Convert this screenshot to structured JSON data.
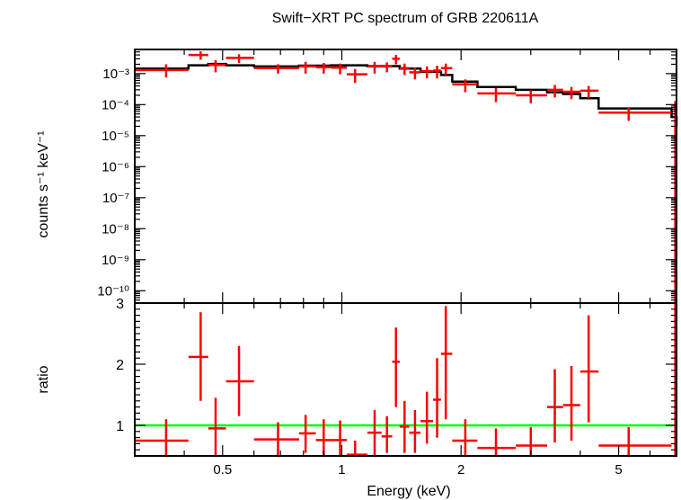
{
  "chart_data": [
    {
      "type": "scatter",
      "title": "Swift−XRT PC spectrum of GRB 220611A",
      "ylabel": "counts s⁻¹ keV⁻¹",
      "xscale": "log",
      "yscale": "log",
      "xlim": [
        0.3,
        7.0
      ],
      "ylim": [
        4e-11,
        0.006
      ],
      "yticks": [
        {
          "value": 0.001,
          "label": "10⁻³"
        },
        {
          "value": 0.0001,
          "label": "10⁻⁴"
        },
        {
          "value": 1e-05,
          "label": "10⁻⁵"
        },
        {
          "value": 1e-06,
          "label": "10⁻⁶"
        },
        {
          "value": 1e-07,
          "label": "10⁻⁷"
        },
        {
          "value": 1e-08,
          "label": "10⁻⁸"
        },
        {
          "value": 1e-09,
          "label": "10⁻⁹"
        },
        {
          "value": 1e-10,
          "label": "10⁻¹⁰"
        }
      ],
      "series": [
        {
          "role": "data",
          "color": "#ff0000",
          "points": [
            {
              "x": 0.36,
              "xlo": 0.3,
              "xhi": 0.41,
              "y": 0.0013,
              "ylo": 0.00075,
              "yhi": 0.002
            },
            {
              "x": 0.44,
              "xlo": 0.41,
              "xhi": 0.46,
              "y": 0.004,
              "ylo": 0.0028,
              "yhi": 0.0052
            },
            {
              "x": 0.48,
              "xlo": 0.46,
              "xhi": 0.51,
              "y": 0.0019,
              "ylo": 0.0011,
              "yhi": 0.0027
            },
            {
              "x": 0.55,
              "xlo": 0.51,
              "xhi": 0.6,
              "y": 0.0032,
              "ylo": 0.0022,
              "yhi": 0.0042
            },
            {
              "x": 0.69,
              "xlo": 0.6,
              "xhi": 0.78,
              "y": 0.0015,
              "ylo": 0.001,
              "yhi": 0.002
            },
            {
              "x": 0.81,
              "xlo": 0.78,
              "xhi": 0.86,
              "y": 0.0017,
              "ylo": 0.001,
              "yhi": 0.0024
            },
            {
              "x": 0.9,
              "xlo": 0.86,
              "xhi": 0.94,
              "y": 0.0016,
              "ylo": 0.001,
              "yhi": 0.0022
            },
            {
              "x": 0.99,
              "xlo": 0.94,
              "xhi": 1.03,
              "y": 0.00155,
              "ylo": 0.00095,
              "yhi": 0.0021
            },
            {
              "x": 1.08,
              "xlo": 1.03,
              "xhi": 1.16,
              "y": 0.00095,
              "ylo": 0.0005,
              "yhi": 0.0014
            },
            {
              "x": 1.21,
              "xlo": 1.16,
              "xhi": 1.26,
              "y": 0.0017,
              "ylo": 0.001,
              "yhi": 0.0024
            },
            {
              "x": 1.3,
              "xlo": 1.26,
              "xhi": 1.34,
              "y": 0.0017,
              "ylo": 0.0011,
              "yhi": 0.0023
            },
            {
              "x": 1.37,
              "xlo": 1.34,
              "xhi": 1.4,
              "y": 0.003,
              "ylo": 0.002,
              "yhi": 0.004
            },
            {
              "x": 1.44,
              "xlo": 1.4,
              "xhi": 1.48,
              "y": 0.0015,
              "ylo": 0.0009,
              "yhi": 0.0021
            },
            {
              "x": 1.53,
              "xlo": 1.48,
              "xhi": 1.58,
              "y": 0.0011,
              "ylo": 0.00065,
              "yhi": 0.0016
            },
            {
              "x": 1.64,
              "xlo": 1.58,
              "xhi": 1.7,
              "y": 0.0012,
              "ylo": 0.0007,
              "yhi": 0.0017
            },
            {
              "x": 1.74,
              "xlo": 1.7,
              "xhi": 1.78,
              "y": 0.00125,
              "ylo": 0.0007,
              "yhi": 0.0018
            },
            {
              "x": 1.83,
              "xlo": 1.78,
              "xhi": 1.9,
              "y": 0.0015,
              "ylo": 0.0009,
              "yhi": 0.0021
            },
            {
              "x": 2.05,
              "xlo": 1.9,
              "xhi": 2.2,
              "y": 0.00045,
              "ylo": 0.00025,
              "yhi": 0.00065
            },
            {
              "x": 2.45,
              "xlo": 2.2,
              "xhi": 2.75,
              "y": 0.00023,
              "ylo": 0.00012,
              "yhi": 0.00034
            },
            {
              "x": 3.0,
              "xlo": 2.75,
              "xhi": 3.3,
              "y": 0.0002,
              "ylo": 0.00011,
              "yhi": 0.00029
            },
            {
              "x": 3.45,
              "xlo": 3.3,
              "xhi": 3.62,
              "y": 0.0003,
              "ylo": 0.00017,
              "yhi": 0.00043
            },
            {
              "x": 3.8,
              "xlo": 3.62,
              "xhi": 4.0,
              "y": 0.00026,
              "ylo": 0.00015,
              "yhi": 0.00037
            },
            {
              "x": 4.2,
              "xlo": 4.0,
              "xhi": 4.45,
              "y": 0.00028,
              "ylo": 0.00016,
              "yhi": 0.0004
            },
            {
              "x": 5.3,
              "xlo": 4.45,
              "xhi": 6.8,
              "y": 5.5e-05,
              "ylo": 3e-05,
              "yhi": 8e-05
            },
            {
              "x": 6.95,
              "xlo": 6.9,
              "xhi": 7.0,
              "y": 8e-05,
              "ylo": 4e-11,
              "yhi": 0.00013
            }
          ]
        },
        {
          "role": "model",
          "color": "#000000",
          "steps": [
            {
              "x0": 0.3,
              "x1": 0.41,
              "y": 0.00145
            },
            {
              "x0": 0.41,
              "x1": 0.46,
              "y": 0.00185
            },
            {
              "x0": 0.46,
              "x1": 0.51,
              "y": 0.00205
            },
            {
              "x0": 0.51,
              "x1": 0.6,
              "y": 0.00185
            },
            {
              "x0": 0.6,
              "x1": 0.78,
              "y": 0.0017
            },
            {
              "x0": 0.78,
              "x1": 0.94,
              "y": 0.0018
            },
            {
              "x0": 0.94,
              "x1": 1.16,
              "y": 0.00185
            },
            {
              "x0": 1.16,
              "x1": 1.4,
              "y": 0.00175
            },
            {
              "x0": 1.4,
              "x1": 1.58,
              "y": 0.00145
            },
            {
              "x0": 1.58,
              "x1": 1.78,
              "y": 0.00115
            },
            {
              "x0": 1.78,
              "x1": 1.9,
              "y": 0.0009
            },
            {
              "x0": 1.9,
              "x1": 2.2,
              "y": 0.00055
            },
            {
              "x0": 2.2,
              "x1": 2.75,
              "y": 0.00037
            },
            {
              "x0": 2.75,
              "x1": 3.3,
              "y": 0.0003
            },
            {
              "x0": 3.3,
              "x1": 3.62,
              "y": 0.00025
            },
            {
              "x0": 3.62,
              "x1": 4.0,
              "y": 0.00022
            },
            {
              "x0": 4.0,
              "x1": 4.45,
              "y": 0.00016
            },
            {
              "x0": 4.45,
              "x1": 6.8,
              "y": 7.5e-05
            },
            {
              "x0": 6.8,
              "x1": 7.0,
              "y": 4e-05
            }
          ]
        }
      ]
    },
    {
      "type": "scatter",
      "xlabel": "Energy (keV)",
      "ylabel": "ratio",
      "xscale": "log",
      "xlim": [
        0.3,
        7.0
      ],
      "ylim": [
        0.5,
        3.0
      ],
      "xticks": [
        {
          "value": 0.5,
          "label": "0.5"
        },
        {
          "value": 1,
          "label": "1"
        },
        {
          "value": 2,
          "label": "2"
        },
        {
          "value": 5,
          "label": "5"
        }
      ],
      "yticks": [
        {
          "value": 1,
          "label": "1"
        },
        {
          "value": 2,
          "label": "2"
        },
        {
          "value": 3,
          "label": "3"
        }
      ],
      "reference_line": {
        "y": 1,
        "color": "#00ff00"
      },
      "series": [
        {
          "role": "ratio",
          "color": "#ff0000",
          "points": [
            {
              "x": 0.36,
              "xlo": 0.3,
              "xhi": 0.41,
              "y": 0.75,
              "ylo": 0.5,
              "yhi": 1.1
            },
            {
              "x": 0.44,
              "xlo": 0.41,
              "xhi": 0.46,
              "y": 2.12,
              "ylo": 1.4,
              "yhi": 2.85
            },
            {
              "x": 0.48,
              "xlo": 0.46,
              "xhi": 0.51,
              "y": 0.95,
              "ylo": 0.5,
              "yhi": 1.45
            },
            {
              "x": 0.55,
              "xlo": 0.51,
              "xhi": 0.6,
              "y": 1.72,
              "ylo": 1.15,
              "yhi": 2.3
            },
            {
              "x": 0.69,
              "xlo": 0.6,
              "xhi": 0.78,
              "y": 0.77,
              "ylo": 0.5,
              "yhi": 1.05
            },
            {
              "x": 0.81,
              "xlo": 0.78,
              "xhi": 0.86,
              "y": 0.87,
              "ylo": 0.55,
              "yhi": 1.17
            },
            {
              "x": 0.9,
              "xlo": 0.86,
              "xhi": 0.94,
              "y": 0.76,
              "ylo": 0.5,
              "yhi": 1.1
            },
            {
              "x": 0.99,
              "xlo": 0.94,
              "xhi": 1.03,
              "y": 0.76,
              "ylo": 0.5,
              "yhi": 1.08
            },
            {
              "x": 1.08,
              "xlo": 1.03,
              "xhi": 1.16,
              "y": 0.52,
              "ylo": 0.5,
              "yhi": 0.75
            },
            {
              "x": 1.21,
              "xlo": 1.16,
              "xhi": 1.26,
              "y": 0.88,
              "ylo": 0.5,
              "yhi": 1.25
            },
            {
              "x": 1.3,
              "xlo": 1.26,
              "xhi": 1.34,
              "y": 0.82,
              "ylo": 0.55,
              "yhi": 1.15
            },
            {
              "x": 1.37,
              "xlo": 1.34,
              "xhi": 1.4,
              "y": 2.04,
              "ylo": 1.3,
              "yhi": 2.6
            },
            {
              "x": 1.44,
              "xlo": 1.4,
              "xhi": 1.48,
              "y": 0.98,
              "ylo": 0.55,
              "yhi": 1.4
            },
            {
              "x": 1.53,
              "xlo": 1.48,
              "xhi": 1.58,
              "y": 0.88,
              "ylo": 0.55,
              "yhi": 1.25
            },
            {
              "x": 1.64,
              "xlo": 1.58,
              "xhi": 1.7,
              "y": 1.07,
              "ylo": 0.7,
              "yhi": 1.55
            },
            {
              "x": 1.74,
              "xlo": 1.7,
              "xhi": 1.78,
              "y": 1.42,
              "ylo": 0.8,
              "yhi": 2.1
            },
            {
              "x": 1.83,
              "xlo": 1.78,
              "xhi": 1.9,
              "y": 2.17,
              "ylo": 1.1,
              "yhi": 2.95
            },
            {
              "x": 2.05,
              "xlo": 1.9,
              "xhi": 2.2,
              "y": 0.75,
              "ylo": 0.5,
              "yhi": 1.1
            },
            {
              "x": 2.45,
              "xlo": 2.2,
              "xhi": 2.75,
              "y": 0.63,
              "ylo": 0.5,
              "yhi": 0.95
            },
            {
              "x": 3.0,
              "xlo": 2.75,
              "xhi": 3.3,
              "y": 0.67,
              "ylo": 0.5,
              "yhi": 0.97
            },
            {
              "x": 3.45,
              "xlo": 3.3,
              "xhi": 3.62,
              "y": 1.3,
              "ylo": 0.72,
              "yhi": 1.92
            },
            {
              "x": 3.8,
              "xlo": 3.62,
              "xhi": 4.0,
              "y": 1.33,
              "ylo": 0.75,
              "yhi": 1.97
            },
            {
              "x": 4.2,
              "xlo": 4.0,
              "xhi": 4.45,
              "y": 1.88,
              "ylo": 1.05,
              "yhi": 2.8
            },
            {
              "x": 5.3,
              "xlo": 4.45,
              "xhi": 6.8,
              "y": 0.67,
              "ylo": 0.5,
              "yhi": 0.97
            },
            {
              "x": 6.95,
              "xlo": 6.9,
              "xhi": 7.0,
              "y": 0.67,
              "ylo": 0.5,
              "yhi": 3.0
            }
          ]
        }
      ]
    }
  ]
}
